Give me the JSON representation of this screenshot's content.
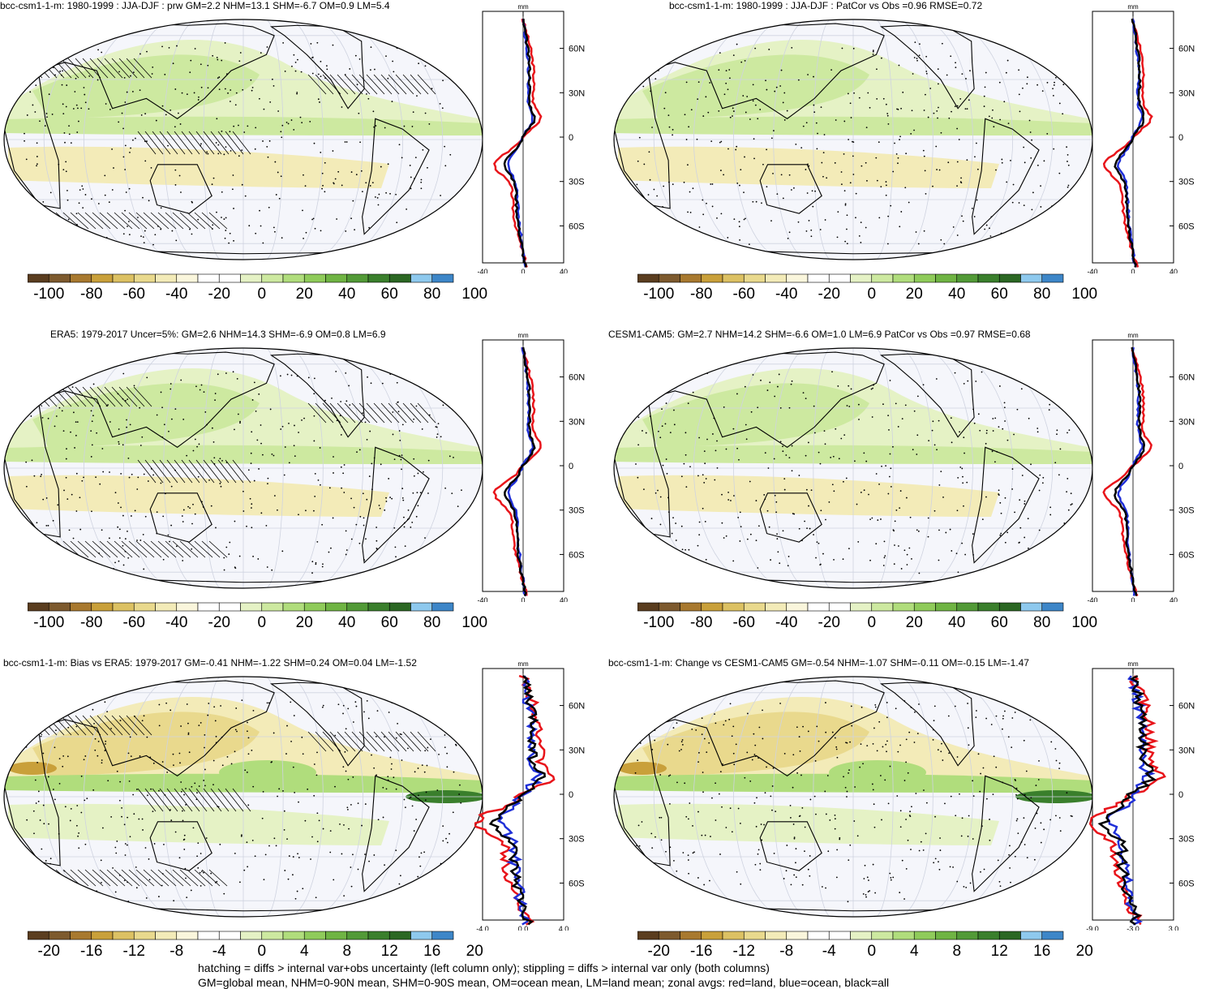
{
  "panels": [
    {
      "id": "p1",
      "title": "bcc-csm1-1-m: 1980-1999 : JJA-DJF : prw GM=2.2 NHM=13.1 SHM=-6.7 OM=0.9 LM=5.4",
      "colorbar_labels": [
        "-100",
        "-80",
        "-60",
        "-40",
        "-20",
        "0",
        "20",
        "40",
        "60",
        "80",
        "100"
      ],
      "profile_xticks": [
        "-40",
        "0",
        "40"
      ],
      "profile_unit": "mm",
      "profile_lat_labels": [
        "60N",
        "30N",
        "0",
        "30S",
        "60S"
      ],
      "hatching": true,
      "scale": "full"
    },
    {
      "id": "p2",
      "title": "bcc-csm1-1-m: 1980-1999 : JJA-DJF : PatCor vs Obs =0.96 RMSE=0.72",
      "colorbar_labels": [
        "-100",
        "-80",
        "-60",
        "-40",
        "-20",
        "0",
        "20",
        "40",
        "60",
        "80",
        "100"
      ],
      "profile_xticks": [
        "-40",
        "0",
        "40"
      ],
      "profile_unit": "mm",
      "profile_lat_labels": [
        "60N",
        "30N",
        "0",
        "30S",
        "60S"
      ],
      "hatching": false,
      "scale": "full"
    },
    {
      "id": "p3",
      "title": "ERA5: 1979-2017 Uncer=5%: GM=2.6 NHM=14.3 SHM=-6.9 OM=0.8 LM=6.9",
      "colorbar_labels": [
        "-100",
        "-80",
        "-60",
        "-40",
        "-20",
        "0",
        "20",
        "40",
        "60",
        "80",
        "100"
      ],
      "profile_xticks": [
        "-40",
        "0",
        "40"
      ],
      "profile_unit": "mm",
      "profile_lat_labels": [
        "60N",
        "30N",
        "0",
        "30S",
        "60S"
      ],
      "hatching": true,
      "scale": "full"
    },
    {
      "id": "p4",
      "title": "CESM1-CAM5: GM=2.7 NHM=14.2 SHM=-6.6 OM=1.0 LM=6.9 PatCor vs Obs =0.97 RMSE=0.68",
      "colorbar_labels": [
        "-100",
        "-80",
        "-60",
        "-40",
        "-20",
        "0",
        "20",
        "40",
        "60",
        "80",
        "100"
      ],
      "profile_xticks": [
        "-40",
        "0",
        "40"
      ],
      "profile_unit": "mm",
      "profile_lat_labels": [
        "60N",
        "30N",
        "0",
        "30S",
        "60S"
      ],
      "hatching": false,
      "scale": "full"
    },
    {
      "id": "p5",
      "title": "bcc-csm1-1-m: Bias vs ERA5: 1979-2017 GM=-0.41 NHM=-1.22 SHM=0.24 OM=0.04 LM=-1.52",
      "colorbar_labels": [
        "-20",
        "-16",
        "-12",
        "-8",
        "-4",
        "0",
        "4",
        "8",
        "12",
        "16",
        "20"
      ],
      "profile_xticks": [
        "-4.0",
        "0.0",
        "4.0"
      ],
      "profile_unit": "mm",
      "profile_lat_labels": [
        "60N",
        "30N",
        "0",
        "30S",
        "60S"
      ],
      "hatching": true,
      "scale": "diff"
    },
    {
      "id": "p6",
      "title": "bcc-csm1-1-m: Change vs CESM1-CAM5 GM=-0.54 NHM=-1.07 SHM=-0.11 OM=-0.15 LM=-1.47",
      "colorbar_labels": [
        "-20",
        "-16",
        "-12",
        "-8",
        "-4",
        "0",
        "4",
        "8",
        "12",
        "16",
        "20"
      ],
      "profile_xticks": [
        "-9.0",
        "-3.0",
        "3.0"
      ],
      "profile_unit": "mm",
      "profile_lat_labels": [
        "60N",
        "30N",
        "0",
        "30S",
        "60S"
      ],
      "hatching": false,
      "scale": "diff"
    }
  ],
  "colorbar_colors": [
    "#5a3d1f",
    "#7d5a2e",
    "#a8792f",
    "#c9a03a",
    "#dcc163",
    "#e9d98d",
    "#f3ebb8",
    "#faf6dc",
    "#ffffff",
    "#ffffff",
    "#e5f2c5",
    "#cde9a0",
    "#b0dd7c",
    "#8fcb5a",
    "#6fb443",
    "#529a37",
    "#3a7f2c",
    "#2b6723",
    "#8ec9ee",
    "#3d86c8"
  ],
  "footer": {
    "line1": "hatching = diffs > internal var+obs uncertainty (left column only); stippling = diffs > internal var only (both columns)",
    "line2": "GM=global mean, NHM=0-90N mean, SHM=0-90S mean, OM=ocean mean, LM=land mean; zonal avgs: red=land, blue=ocean, black=all"
  },
  "profile_colors": {
    "land": "#e8141a",
    "ocean": "#1f2fd8",
    "all": "#000000"
  }
}
